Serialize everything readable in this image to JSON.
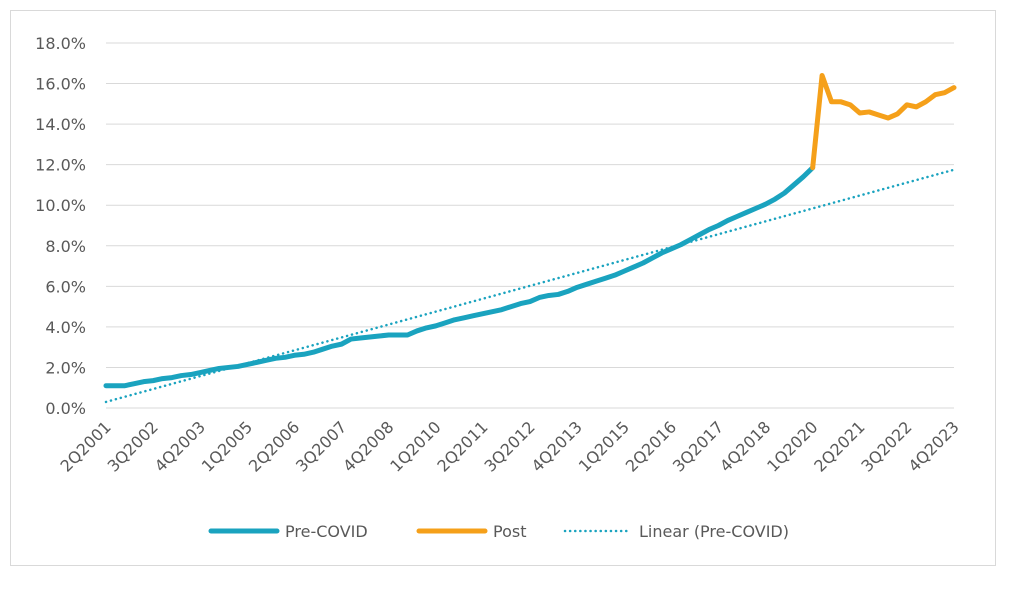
{
  "chart_data": {
    "type": "line",
    "title": "",
    "xlabel": "",
    "ylabel": "",
    "ylim": [
      0,
      18
    ],
    "y_ticks": [
      "0.0%",
      "2.0%",
      "4.0%",
      "6.0%",
      "8.0%",
      "10.0%",
      "12.0%",
      "14.0%",
      "16.0%",
      "18.0%"
    ],
    "y_tick_values": [
      0,
      2,
      4,
      6,
      8,
      10,
      12,
      14,
      16,
      18
    ],
    "x_tick_labels": [
      "2Q2001",
      "3Q2002",
      "4Q2003",
      "1Q2005",
      "2Q2006",
      "3Q2007",
      "4Q2008",
      "1Q2010",
      "2Q2011",
      "3Q2012",
      "4Q2013",
      "1Q2015",
      "2Q2016",
      "3Q2017",
      "4Q2018",
      "1Q2020",
      "2Q2021",
      "3Q2022",
      "4Q2023"
    ],
    "x_tick_indices": [
      0,
      5,
      10,
      15,
      20,
      25,
      30,
      35,
      40,
      45,
      50,
      55,
      60,
      65,
      70,
      75,
      80,
      85,
      90
    ],
    "n_points": 91,
    "grid": true,
    "legend_position": "bottom",
    "series": [
      {
        "name": "Pre-COVID",
        "color": "#1aa3bf",
        "style": "solid",
        "start_index": 0,
        "values": [
          1.1,
          1.1,
          1.1,
          1.2,
          1.3,
          1.35,
          1.45,
          1.5,
          1.6,
          1.65,
          1.75,
          1.85,
          1.95,
          2.0,
          2.05,
          2.15,
          2.25,
          2.35,
          2.45,
          2.5,
          2.6,
          2.65,
          2.75,
          2.9,
          3.05,
          3.15,
          3.4,
          3.45,
          3.5,
          3.55,
          3.6,
          3.6,
          3.6,
          3.8,
          3.95,
          4.05,
          4.2,
          4.35,
          4.45,
          4.55,
          4.65,
          4.75,
          4.85,
          5.0,
          5.15,
          5.25,
          5.45,
          5.55,
          5.6,
          5.75,
          5.95,
          6.1,
          6.25,
          6.4,
          6.55,
          6.75,
          6.95,
          7.15,
          7.4,
          7.65,
          7.85,
          8.05,
          8.3,
          8.55,
          8.8,
          9.0,
          9.25,
          9.45,
          9.65,
          9.85,
          10.05,
          10.3,
          10.6,
          11.0,
          11.4,
          11.85
        ]
      },
      {
        "name": "Post",
        "color": "#f5a01a",
        "style": "solid",
        "start_index": 75,
        "values": [
          11.85,
          16.4,
          15.1,
          15.1,
          14.95,
          14.55,
          14.6,
          14.45,
          14.3,
          14.5,
          14.95,
          14.85,
          15.1,
          15.45,
          15.55,
          15.8
        ]
      },
      {
        "name": "Linear (Pre-COVID)",
        "color": "#1aa3bf",
        "style": "dotted",
        "start_index": 0,
        "values": [
          0.3,
          11.75
        ],
        "end_index": 90
      }
    ]
  }
}
